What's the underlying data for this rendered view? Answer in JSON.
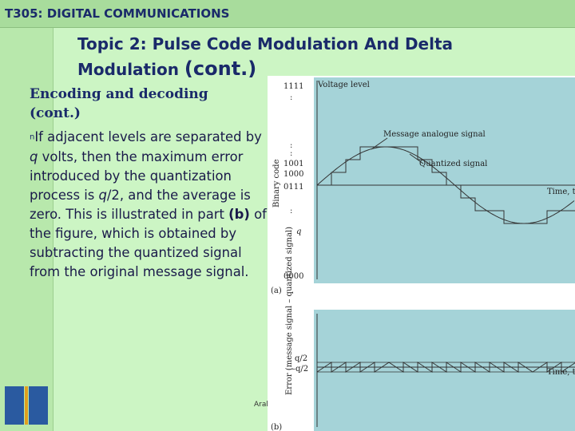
{
  "header": {
    "course": "T305: DIGITAL COMMUNICATIONS"
  },
  "heading": {
    "line1": "Topic 2: Pulse Code Modulation And Delta",
    "line2": "Modulation",
    "suffix": "(cont.)"
  },
  "subheading": "Encoding and decoding (cont.)",
  "paragraph": {
    "bullet": "n",
    "runs": [
      "If adjacent levels are separated by ",
      "q",
      " volts, then the maximum error introduced by the quantization process is ",
      "q",
      "/2, and the average is zero. This is illustrated in part ",
      "(b)",
      " of the figure, which is obtained by subtracting the quantized signal from the original message signal."
    ]
  },
  "footer": "Arab",
  "figure": {
    "panel_a": {
      "codes": [
        "1111",
        "1001",
        "1000",
        "0111",
        "0000"
      ],
      "step_label": "q",
      "y_label": "Binary code",
      "top_label": "Voltage level",
      "signal_label": "Message analogue signal",
      "quantized_label": "Quantized signal",
      "time_label": "Time, t",
      "caption": "(a)"
    },
    "panel_b": {
      "y_label": "Error (message signal – quantized signal)",
      "upper": "q/2",
      "lower": "–q/2",
      "time_label": "Time, t",
      "caption": "(b)"
    }
  }
}
